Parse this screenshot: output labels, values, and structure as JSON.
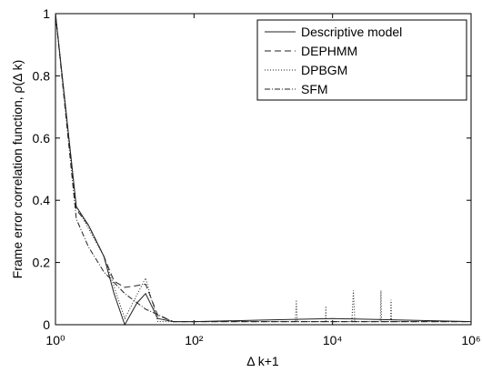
{
  "chart_data": {
    "type": "line",
    "xlabel": "Δ k+1",
    "ylabel": "Frame error correlation function, ρ(Δ k)",
    "xscale": "log",
    "xlim": [
      1,
      1000000
    ],
    "ylim": [
      0,
      1
    ],
    "xticks": [
      {
        "value": 1,
        "label": "10⁰"
      },
      {
        "value": 100,
        "label": "10²"
      },
      {
        "value": 10000,
        "label": "10⁴"
      },
      {
        "value": 1000000,
        "label": "10⁶"
      }
    ],
    "yticks": [
      0,
      0.2,
      0.4,
      0.6,
      0.8,
      1
    ],
    "legend": "upper right",
    "series": [
      {
        "name": "Descriptive model",
        "color": "#222222",
        "dash": "none",
        "x": [
          1,
          2,
          3,
          5,
          7,
          10,
          15,
          20,
          30,
          50,
          100,
          1000,
          10000,
          100000,
          1000000
        ],
        "values": [
          1,
          0.38,
          0.32,
          0.22,
          0.1,
          0.0,
          0.07,
          0.1,
          0.02,
          0.01,
          0.01,
          0.015,
          0.02,
          0.015,
          0.01
        ]
      },
      {
        "name": "DEPHMM",
        "color": "#222222",
        "dash": "7,4",
        "x": [
          1,
          2,
          3,
          5,
          7,
          10,
          20,
          30,
          50,
          100,
          1000,
          10000,
          100000,
          1000000
        ],
        "values": [
          1,
          0.37,
          0.32,
          0.22,
          0.14,
          0.12,
          0.13,
          0.03,
          0.01,
          0.01,
          0.01,
          0.01,
          0.01,
          0.01
        ]
      },
      {
        "name": "DPBGM",
        "color": "#222222",
        "dash": "1,2",
        "x": [
          1,
          2,
          5,
          10,
          20,
          30,
          100,
          2900,
          3000,
          3100,
          7900,
          8000,
          8100,
          19000,
          20000,
          21000,
          49000,
          50000,
          51000,
          69000,
          70000,
          71000,
          1000000
        ],
        "values": [
          1,
          0.38,
          0.22,
          0.02,
          0.15,
          0.01,
          0.01,
          0.01,
          0.08,
          0.01,
          0.01,
          0.06,
          0.01,
          0.01,
          0.11,
          0.01,
          0.01,
          0.11,
          0.01,
          0.01,
          0.08,
          0.01,
          0.01
        ]
      },
      {
        "name": "SFM",
        "color": "#222222",
        "dash": "6,2,1,2",
        "x": [
          1,
          2,
          3,
          5,
          10,
          20,
          50,
          100,
          1000,
          1000000
        ],
        "values": [
          1,
          0.34,
          0.25,
          0.17,
          0.1,
          0.05,
          0.01,
          0.01,
          0.01,
          0.01
        ]
      }
    ]
  }
}
